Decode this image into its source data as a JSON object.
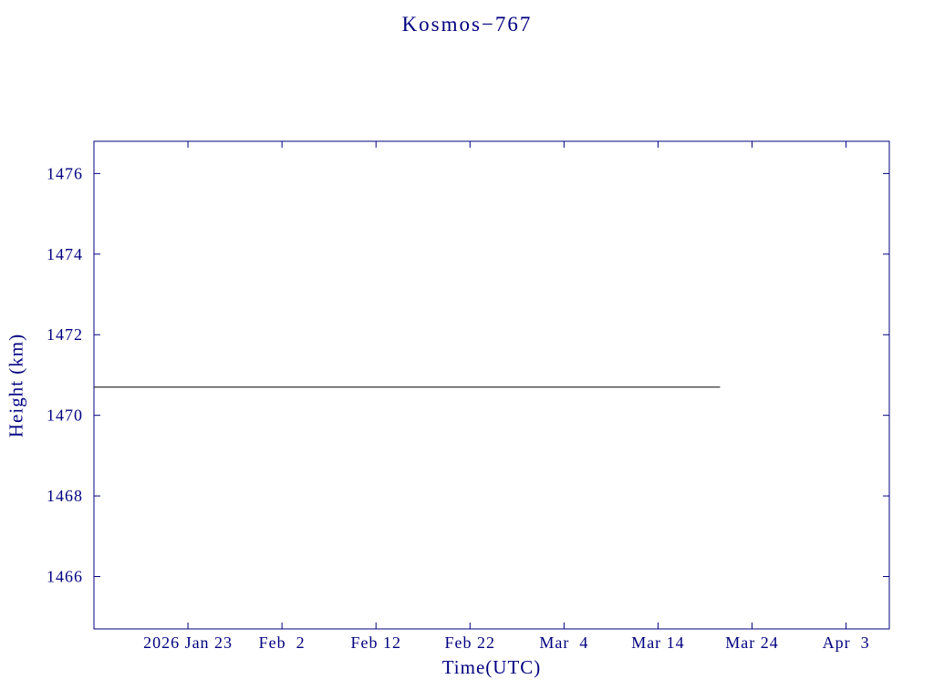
{
  "chart_data": {
    "type": "line",
    "title": "Kosmos−767",
    "xlabel": "Time(UTC)",
    "ylabel": "Height (km)",
    "axis_color": "#000080",
    "background_color": "#ffffff",
    "grid": false,
    "legend": false,
    "x_axis": {
      "unit": "date (UTC)",
      "tick_labels": [
        "2026 Jan 23",
        "Feb  2",
        "Feb 12",
        "Feb 22",
        "Mar  4",
        "Mar 14",
        "Mar 24",
        "Apr  3"
      ],
      "tick_positions_days": [
        10,
        20,
        30,
        40,
        50,
        60,
        70,
        80
      ],
      "range_days": [
        0,
        84.6
      ]
    },
    "y_axis": {
      "unit": "km",
      "ticks": [
        1466,
        1468,
        1470,
        1472,
        1474,
        1476
      ],
      "range_km": [
        1464.7,
        1476.8
      ]
    },
    "series": [
      {
        "name": "orbit-height",
        "color": "#000000",
        "x_days": [
          0,
          66.6
        ],
        "y_km": [
          1470.7,
          1470.7
        ]
      }
    ]
  }
}
